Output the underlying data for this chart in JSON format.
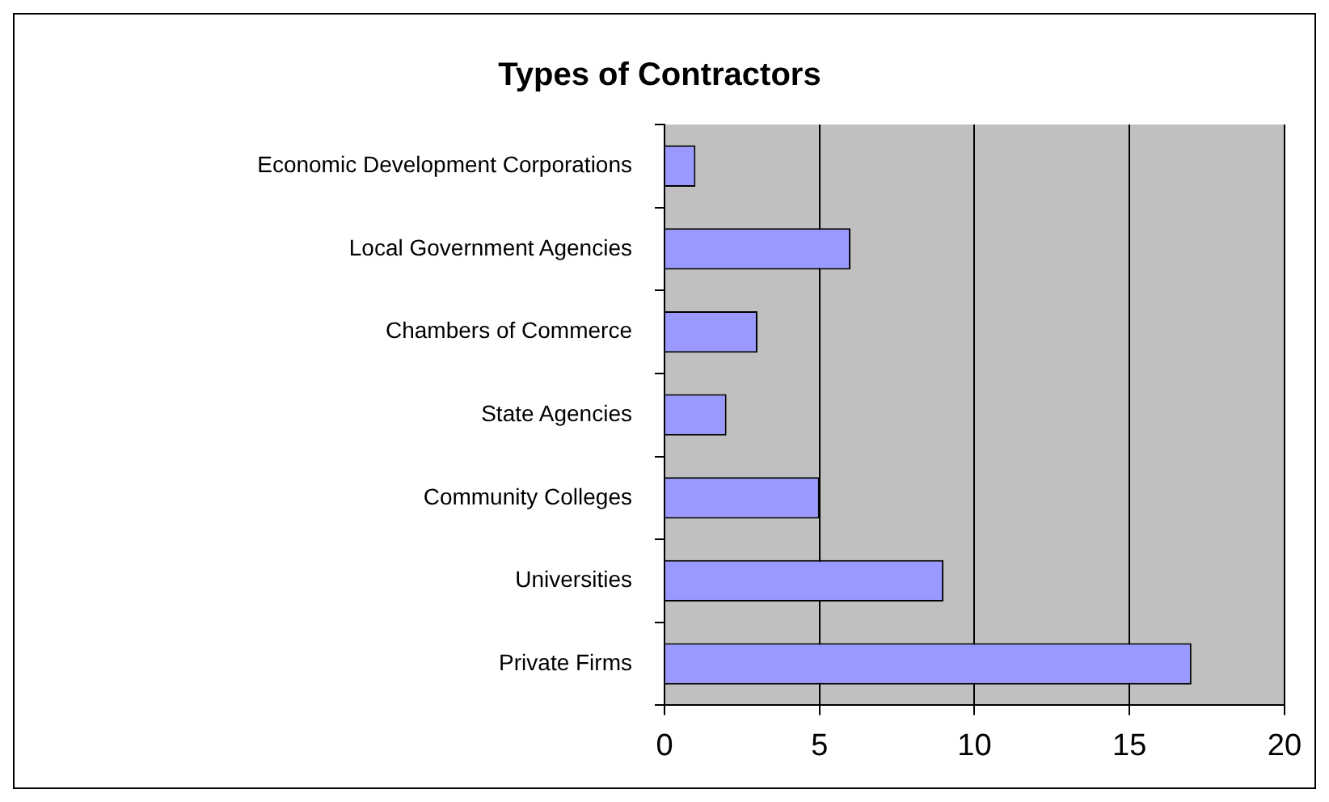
{
  "chart_data": {
    "type": "bar",
    "orientation": "horizontal",
    "title": "Types of Contractors",
    "categories": [
      "Economic Development Corporations",
      "Local Government Agencies",
      "Chambers of Commerce",
      "State Agencies",
      "Community Colleges",
      "Universities",
      "Private Firms"
    ],
    "values": [
      1,
      6,
      3,
      2,
      5,
      9,
      17
    ],
    "color": "#9999ff",
    "xlim": [
      0,
      20
    ],
    "xticks": [
      0,
      5,
      10,
      15,
      20
    ],
    "grid": "x",
    "legend": false
  }
}
